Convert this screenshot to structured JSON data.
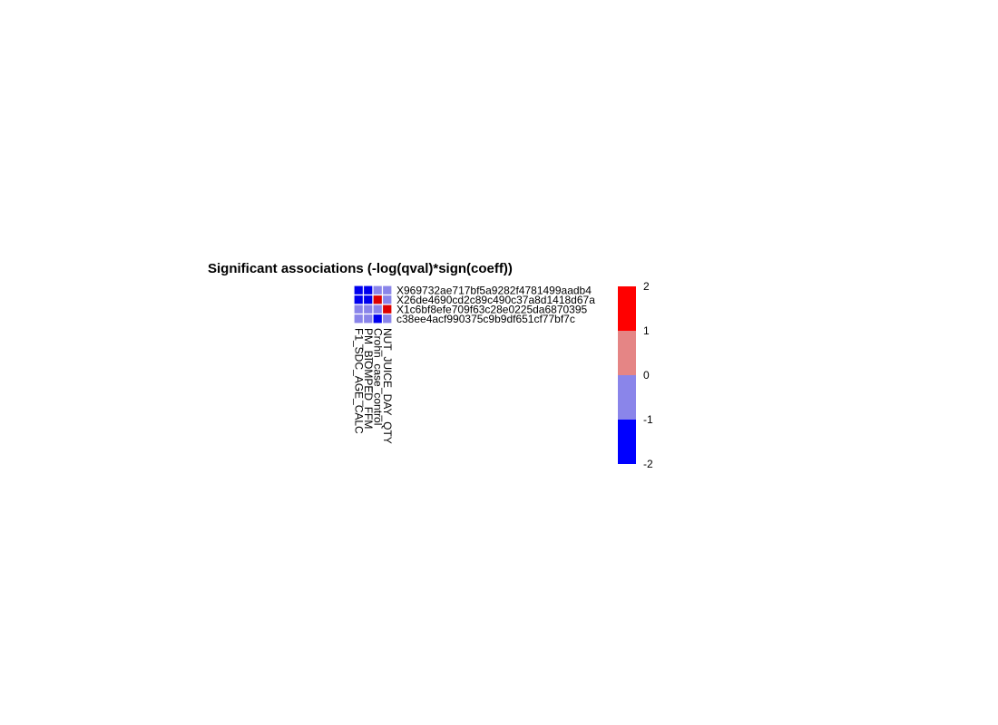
{
  "chart_data": {
    "type": "heatmap",
    "title": "Significant associations (-log(qval)*sign(coeff))",
    "rows": [
      "X969732ae717bf5a9282f4781499aadb4",
      "X26de4690cd2c89c490c37a8d1418d67a",
      "X1c6bf8efe709f63c28e0225da6870395",
      "c38ee4acf990375c9b9df651cf77bf7c"
    ],
    "columns": [
      "F1_SDC_AGE_CALC",
      "PM_BIOMPED_FFM",
      "Crohn_case_control",
      "NUT_JUICE_DAY_QTY"
    ],
    "values": [
      [
        -2,
        -2,
        -0.5,
        -0.5
      ],
      [
        -2,
        -2,
        1.5,
        -0.5
      ],
      [
        -0.5,
        -0.5,
        -0.5,
        1.5
      ],
      [
        -0.5,
        -0.5,
        -2,
        -0.5
      ]
    ],
    "legend": {
      "ticks": [
        "2",
        "1",
        "0",
        "-1",
        "-2"
      ],
      "bins": [
        {
          "from": 1,
          "to": 2,
          "color": "#ff0000"
        },
        {
          "from": 0,
          "to": 1,
          "color": "#e58585"
        },
        {
          "from": -1,
          "to": 0,
          "color": "#8a85ea"
        },
        {
          "from": -2,
          "to": -1,
          "color": "#0000ff"
        }
      ],
      "position": "right"
    },
    "colors": {
      "strong_negative": "#0000ee",
      "weak_negative": "#8a85ea",
      "positive": "#dd0000",
      "cell_border": "#ffffff"
    }
  }
}
